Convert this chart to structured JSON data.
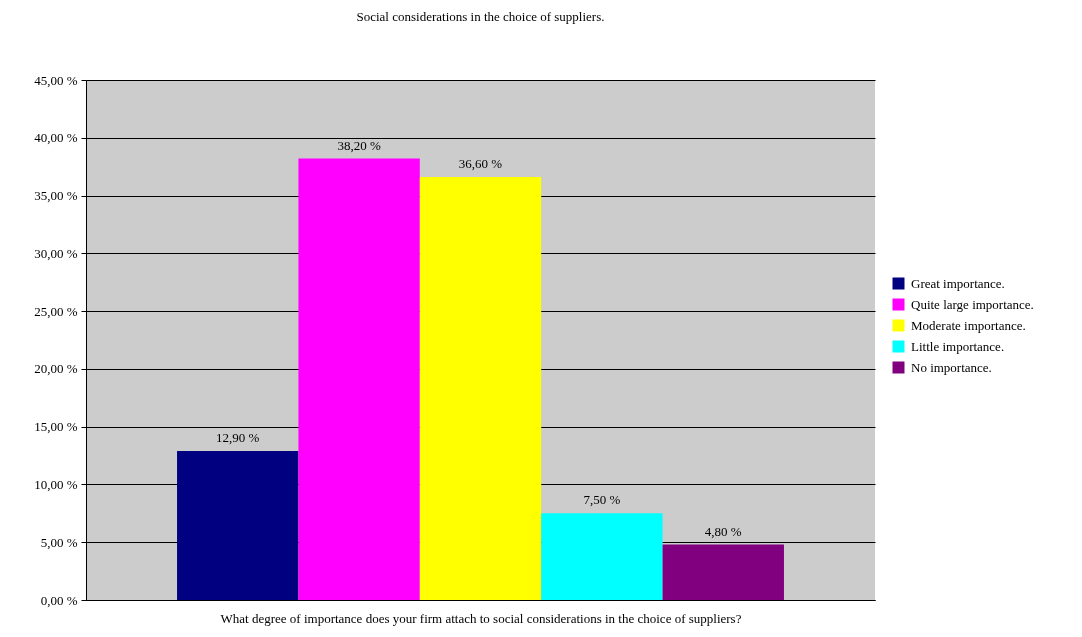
{
  "chart_data": {
    "type": "bar",
    "title": "Social considerations in the choice of suppliers.",
    "xlabel": "What degree of importance does your firm attach to social considerations in the choice of suppliers?",
    "categories": [
      null
    ],
    "series": [
      {
        "name": "Great importance.",
        "color": "#000080",
        "values": [
          12.9
        ],
        "value_labels": [
          "12,90 %"
        ]
      },
      {
        "name": "Quite large importance.",
        "color": "#ff00ff",
        "values": [
          38.2
        ],
        "value_labels": [
          "38,20 %"
        ]
      },
      {
        "name": "Moderate importance.",
        "color": "#ffff00",
        "values": [
          36.6
        ],
        "value_labels": [
          "36,60 %"
        ]
      },
      {
        "name": "Little importance.",
        "color": "#00ffff",
        "values": [
          7.5
        ],
        "value_labels": [
          "7,50 %"
        ]
      },
      {
        "name": "No importance.",
        "color": "#800080",
        "values": [
          4.8
        ],
        "value_labels": [
          "4,80 %"
        ]
      }
    ],
    "ylim": [
      0,
      45
    ],
    "yticks": [
      {
        "value": 0,
        "label": "0,00 %"
      },
      {
        "value": 5,
        "label": "5,00 %"
      },
      {
        "value": 10,
        "label": "10,00 %"
      },
      {
        "value": 15,
        "label": "15,00 %"
      },
      {
        "value": 20,
        "label": "20,00 %"
      },
      {
        "value": 25,
        "label": "25,00 %"
      },
      {
        "value": 30,
        "label": "30,00 %"
      },
      {
        "value": 35,
        "label": "35,00 %"
      },
      {
        "value": 40,
        "label": "40,00 %"
      },
      {
        "value": 45,
        "label": "45,00 %"
      }
    ],
    "grid": "y",
    "legend": "right",
    "tick_labels": "y"
  }
}
